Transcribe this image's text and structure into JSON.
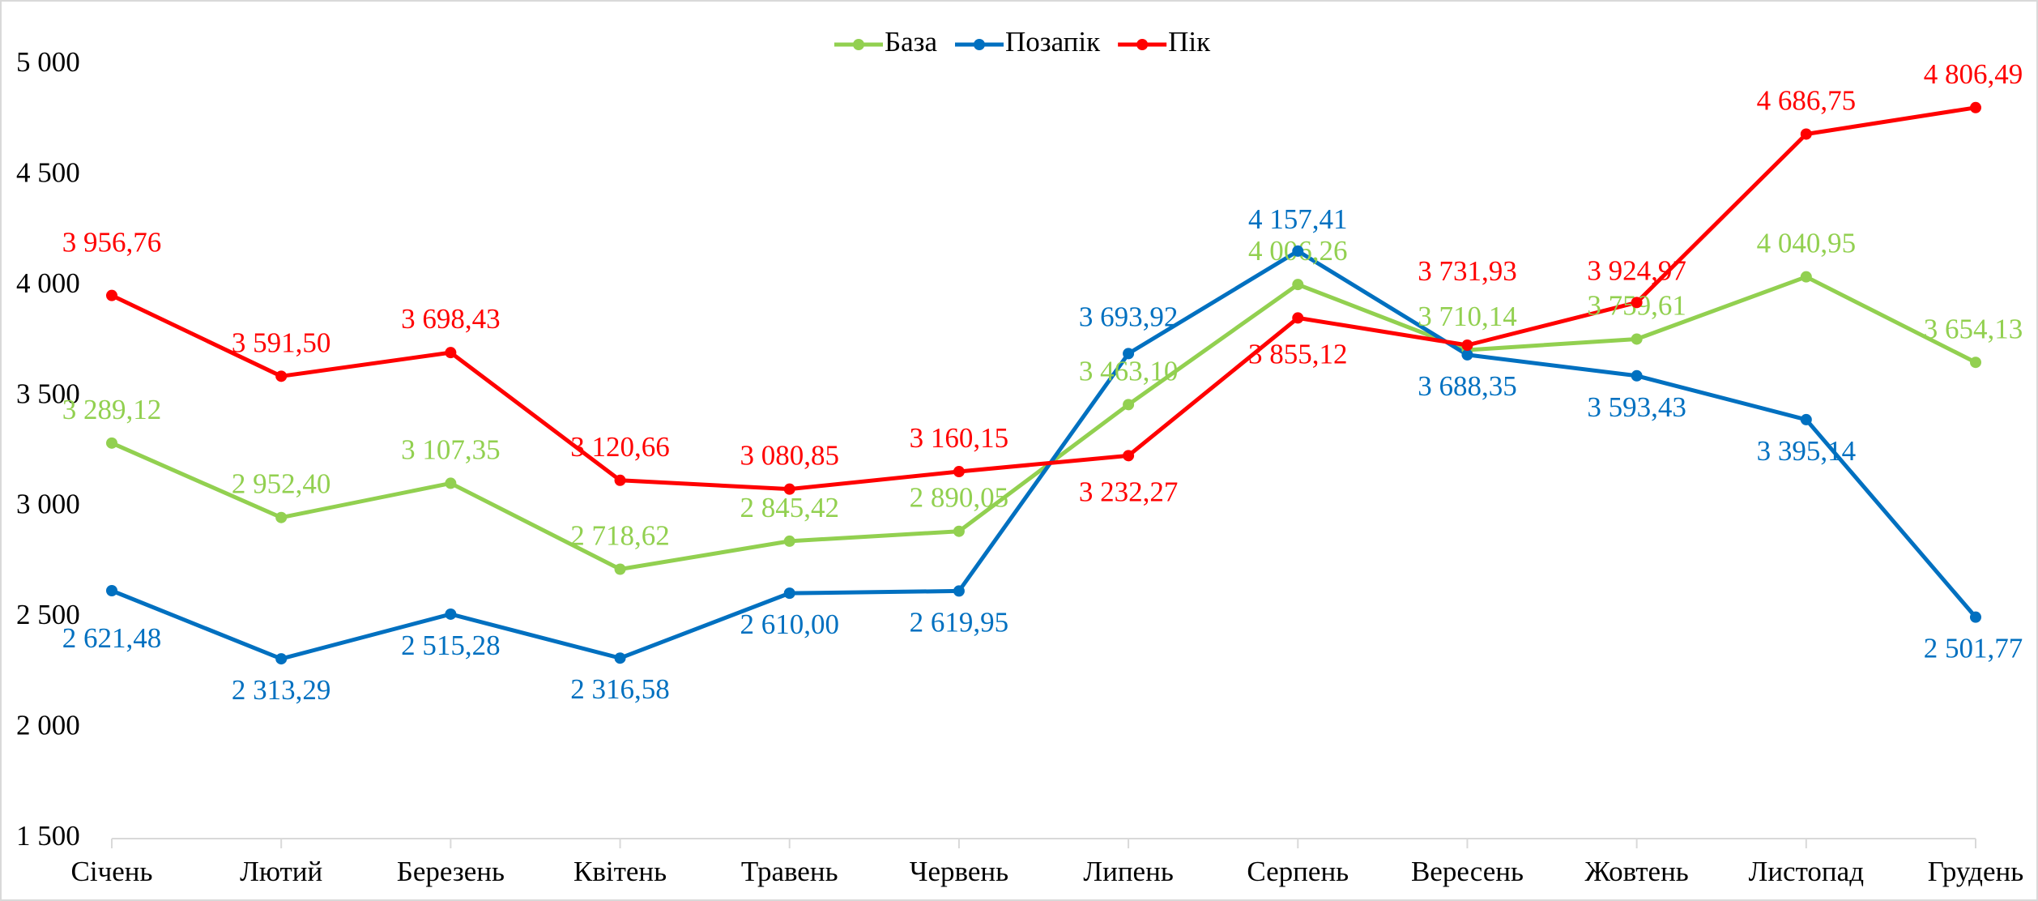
{
  "chart_data": {
    "type": "line",
    "categories": [
      "Січень",
      "Лютий",
      "Березень",
      "Квітень",
      "Травень",
      "Червень",
      "Липень",
      "Серпень",
      "Вересень",
      "Жовтень",
      "Листопад",
      "Грудень"
    ],
    "series": [
      {
        "name": "База",
        "color": "#92d050",
        "values": [
          3289.12,
          2952.4,
          3107.35,
          2718.62,
          2845.42,
          2890.05,
          3463.1,
          4006.26,
          3710.14,
          3759.61,
          4040.95,
          3654.13
        ],
        "value_labels": [
          "3 289,12",
          "2 952,40",
          "3 107,35",
          "2 718,62",
          "2 845,42",
          "2 890,05",
          "3 463,10",
          "4 006,26",
          "3 710,14",
          "3 759,61",
          "4 040,95",
          "3 654,13"
        ]
      },
      {
        "name": "Позапік",
        "color": "#0070c0",
        "values": [
          2621.48,
          2313.29,
          2515.28,
          2316.58,
          2610.0,
          2619.95,
          3693.92,
          4157.41,
          3688.35,
          3593.43,
          3395.14,
          2501.77
        ],
        "value_labels": [
          "2 621,48",
          "2 313,29",
          "2 515,28",
          "2 316,58",
          "2 610,00",
          "2 619,95",
          "3 693,92",
          "4 157,41",
          "3 688,35",
          "3 593,43",
          "3 395,14",
          "2 501,77"
        ]
      },
      {
        "name": "Пік",
        "color": "#ff0000",
        "values": [
          3956.76,
          3591.5,
          3698.43,
          3120.66,
          3080.85,
          3160.15,
          3232.27,
          3855.12,
          3731.93,
          3924.97,
          4686.75,
          4806.49
        ],
        "value_labels": [
          "3 956,76",
          "3 591,50",
          "3 698,43",
          "3 120,66",
          "3 080,85",
          "3 160,15",
          "3 232,27",
          "3 855,12",
          "3 731,93",
          "3 924,97",
          "4 686,75",
          "4 806,49"
        ]
      }
    ],
    "ylim": [
      1500,
      5000
    ],
    "yticks": [
      {
        "value": 1500,
        "label": "1 500"
      },
      {
        "value": 2000,
        "label": "2 000"
      },
      {
        "value": 2500,
        "label": "2 500"
      },
      {
        "value": 3000,
        "label": "3 000"
      },
      {
        "value": 3500,
        "label": "3 500"
      },
      {
        "value": 4000,
        "label": "4 000"
      },
      {
        "value": 4500,
        "label": "4 500"
      },
      {
        "value": 5000,
        "label": "5 000"
      }
    ],
    "legend": "top",
    "grid": false
  }
}
